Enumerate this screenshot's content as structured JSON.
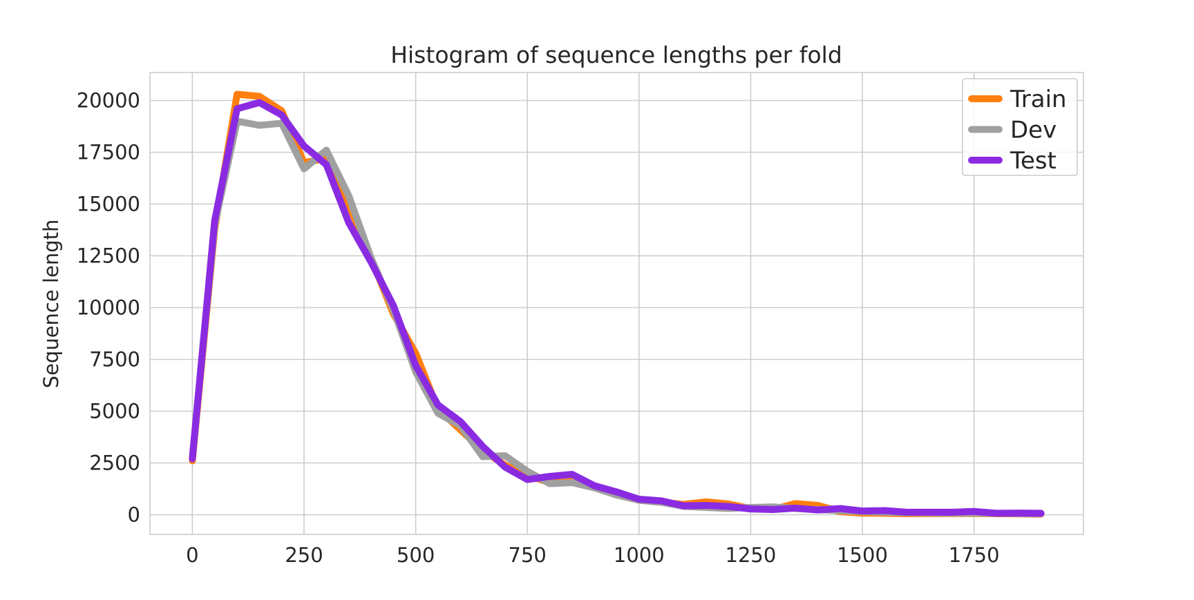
{
  "chart_data": {
    "type": "line",
    "title": "Histogram of sequence lengths per fold",
    "xlabel": "",
    "ylabel": "Sequence length",
    "xlim": [
      -95,
      1995
    ],
    "ylim": [
      -950,
      21350
    ],
    "grid": true,
    "legend_position": "top-right",
    "x_ticks": [
      0,
      250,
      500,
      750,
      1000,
      1250,
      1500,
      1750
    ],
    "y_ticks": [
      0,
      2500,
      5000,
      7500,
      10000,
      12500,
      15000,
      17500,
      20000
    ],
    "x": [
      0,
      50,
      100,
      150,
      200,
      250,
      300,
      350,
      400,
      450,
      500,
      550,
      600,
      650,
      700,
      750,
      800,
      850,
      900,
      950,
      1000,
      1050,
      1100,
      1150,
      1200,
      1250,
      1300,
      1350,
      1400,
      1450,
      1500,
      1550,
      1600,
      1650,
      1700,
      1750,
      1800,
      1850,
      1900
    ],
    "series": [
      {
        "name": "Train",
        "color": "#ff7f0e",
        "values": [
          2600,
          13800,
          20300,
          20200,
          19500,
          17000,
          17200,
          15000,
          12400,
          9700,
          7800,
          5100,
          4100,
          3100,
          2400,
          1900,
          1550,
          1700,
          1350,
          1050,
          700,
          600,
          500,
          620,
          520,
          300,
          250,
          540,
          450,
          150,
          80,
          70,
          50,
          60,
          60,
          60,
          50,
          40,
          30
        ]
      },
      {
        "name": "Dev",
        "color": "#a0a0a0",
        "values": [
          2800,
          14000,
          19000,
          18800,
          18900,
          16700,
          17600,
          15400,
          12400,
          9900,
          6900,
          4900,
          4300,
          2800,
          2850,
          2100,
          1500,
          1550,
          1300,
          950,
          700,
          600,
          400,
          350,
          300,
          350,
          380,
          300,
          250,
          200,
          150,
          120,
          100,
          90,
          80,
          80,
          70,
          60,
          50
        ]
      },
      {
        "name": "Test",
        "color": "#8a2be2",
        "values": [
          2700,
          14200,
          19600,
          19900,
          19300,
          17800,
          16900,
          14100,
          12200,
          10100,
          7200,
          5300,
          4500,
          3300,
          2300,
          1700,
          1850,
          1950,
          1400,
          1100,
          750,
          670,
          430,
          450,
          400,
          280,
          250,
          320,
          230,
          300,
          180,
          200,
          120,
          120,
          120,
          160,
          70,
          80,
          70
        ]
      }
    ]
  }
}
